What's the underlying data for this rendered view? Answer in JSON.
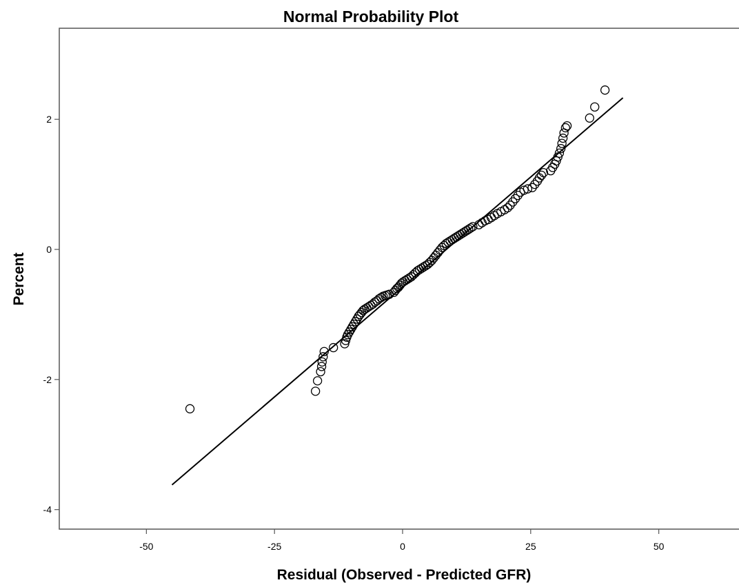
{
  "chart_data": {
    "type": "scatter",
    "title": "Normal Probability Plot",
    "xlabel": "Residual (Observed - Predicted GFR)",
    "ylabel": "Percent",
    "xlim": [
      -67,
      67
    ],
    "ylim": [
      -4.3,
      3.4
    ],
    "x_ticks": [
      -50,
      -25,
      0,
      25,
      50
    ],
    "x_tick_labels": [
      "-50",
      "-25",
      "0",
      "25",
      "50"
    ],
    "y_ticks": [
      2,
      0,
      -2,
      -4
    ],
    "y_tick_labels": [
      "2",
      "0",
      "-2",
      "-4"
    ],
    "grid": false,
    "legend": "none",
    "marker": "open-circle",
    "marker_color": "#000000",
    "line_color": "#000000",
    "reference_line": {
      "x": [
        -45,
        43
      ],
      "y": [
        -3.62,
        2.33
      ]
    },
    "series": [
      {
        "x": [
          -41.5,
          -17,
          -16.6,
          -16,
          -15.8,
          -15.7,
          -15.5,
          -15.3,
          -13.5,
          -11.3,
          -11.1,
          -10.9,
          -10.7,
          -10.4,
          -10.1,
          -9.8,
          -9.5,
          -9.2,
          -8.9,
          -8.6,
          -8.3,
          -8,
          -7.7,
          -7.4,
          -7,
          -6.6,
          -6.2,
          -5.8,
          -5.4,
          -5,
          -4.6,
          -4.2,
          -3.8,
          -3.4,
          -3,
          -2.6,
          -1.7,
          -1.4,
          -1.1,
          -0.8,
          -0.5,
          -0.2,
          0.1,
          0.5,
          0.9,
          1.3,
          1.7,
          2.1,
          2.5,
          2.9,
          3.3,
          3.7,
          4.1,
          4.5,
          4.9,
          5.3,
          5.7,
          6.1,
          6.5,
          6.9,
          7.3,
          7.7,
          8.1,
          8.5,
          8.9,
          9.3,
          9.7,
          10.1,
          10.5,
          10.9,
          11.3,
          11.7,
          12.1,
          12.5,
          12.9,
          13.3,
          13.7,
          14.9,
          15.5,
          16.1,
          16.7,
          17.3,
          17.9,
          18.5,
          19.2,
          19.9,
          20.5,
          21,
          21.5,
          22,
          22.5,
          23,
          23.7,
          24.4,
          25.3,
          25.8,
          26.3,
          26.7,
          27.1,
          27.5,
          28.9,
          29.3,
          29.7,
          30,
          30.3,
          30.6,
          30.9,
          31.1,
          31.3,
          31.5,
          31.8,
          32.1,
          36.5,
          37.5,
          39.5
        ],
        "y": [
          -2.45,
          -2.18,
          -2.02,
          -1.88,
          -1.8,
          -1.73,
          -1.65,
          -1.57,
          -1.51,
          -1.45,
          -1.4,
          -1.35,
          -1.31,
          -1.27,
          -1.23,
          -1.19,
          -1.15,
          -1.11,
          -1.07,
          -1.03,
          -1,
          -0.97,
          -0.94,
          -0.92,
          -0.9,
          -0.88,
          -0.86,
          -0.84,
          -0.81,
          -0.79,
          -0.76,
          -0.74,
          -0.72,
          -0.71,
          -0.7,
          -0.69,
          -0.66,
          -0.63,
          -0.6,
          -0.58,
          -0.55,
          -0.52,
          -0.5,
          -0.48,
          -0.46,
          -0.44,
          -0.42,
          -0.39,
          -0.36,
          -0.33,
          -0.31,
          -0.29,
          -0.27,
          -0.25,
          -0.23,
          -0.2,
          -0.17,
          -0.13,
          -0.09,
          -0.05,
          -0.01,
          0.03,
          0.06,
          0.09,
          0.11,
          0.13,
          0.15,
          0.17,
          0.19,
          0.21,
          0.23,
          0.25,
          0.27,
          0.29,
          0.31,
          0.33,
          0.35,
          0.38,
          0.41,
          0.44,
          0.46,
          0.49,
          0.52,
          0.55,
          0.58,
          0.61,
          0.64,
          0.68,
          0.73,
          0.78,
          0.83,
          0.88,
          0.91,
          0.93,
          0.95,
          1,
          1.05,
          1.1,
          1.14,
          1.18,
          1.21,
          1.26,
          1.31,
          1.36,
          1.42,
          1.48,
          1.55,
          1.63,
          1.71,
          1.79,
          1.87,
          1.9,
          2.02,
          2.19,
          2.45
        ]
      }
    ]
  }
}
